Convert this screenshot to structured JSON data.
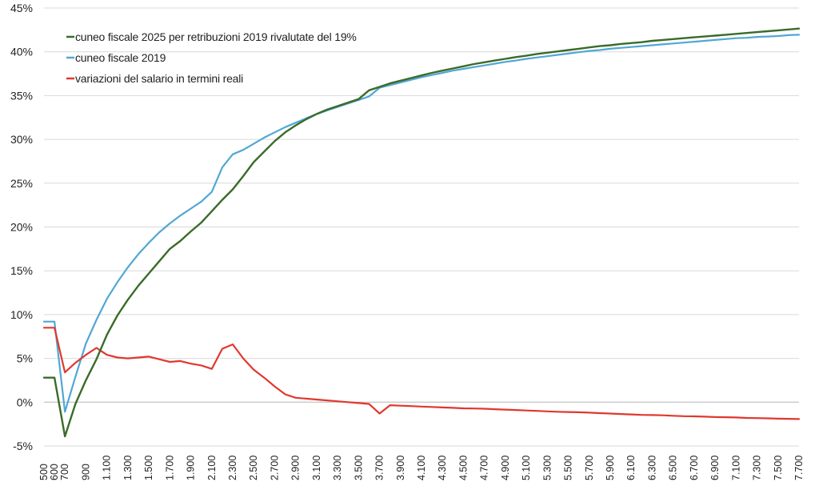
{
  "chart_data": {
    "type": "line",
    "title": "",
    "xlabel": "",
    "ylabel": "",
    "ylim": [
      -5,
      45
    ],
    "yticks": [
      -5,
      0,
      5,
      10,
      15,
      20,
      25,
      30,
      35,
      40,
      45
    ],
    "ytick_labels": [
      "-5%",
      "0%",
      "5%",
      "10%",
      "15%",
      "20%",
      "25%",
      "30%",
      "35%",
      "40%",
      "45%"
    ],
    "grid": "horizontal",
    "legend_position": "top-left",
    "x": [
      500,
      600,
      700,
      800,
      900,
      1000,
      1100,
      1200,
      1300,
      1400,
      1500,
      1600,
      1700,
      1800,
      1900,
      2000,
      2100,
      2200,
      2300,
      2400,
      2500,
      2600,
      2700,
      2800,
      2900,
      3000,
      3100,
      3200,
      3300,
      3400,
      3500,
      3600,
      3700,
      3800,
      3900,
      4000,
      4100,
      4200,
      4300,
      4400,
      4500,
      4600,
      4700,
      4800,
      4900,
      5000,
      5100,
      5200,
      5300,
      5400,
      5500,
      5600,
      5700,
      5800,
      5900,
      6000,
      6100,
      6200,
      6300,
      6400,
      6500,
      6600,
      6700,
      6800,
      6900,
      7000,
      7100,
      7200,
      7300,
      7400,
      7500,
      7600,
      7700
    ],
    "x_tick_labels": [
      "500",
      "600",
      "700",
      "900",
      "1.100",
      "1.300",
      "1.500",
      "1.700",
      "1.900",
      "2.100",
      "2.300",
      "2.500",
      "2.700",
      "2.900",
      "3.100",
      "3.300",
      "3.500",
      "3.700",
      "3.900",
      "4.100",
      "4.300",
      "4.500",
      "4.700",
      "4.900",
      "5.100",
      "5.300",
      "5.500",
      "5.700",
      "5.900",
      "6.100",
      "6.300",
      "6.500",
      "6.700",
      "6.900",
      "7.100",
      "7.300",
      "7.500",
      "7.700"
    ],
    "x_tick_values": [
      500,
      600,
      700,
      900,
      1100,
      1300,
      1500,
      1700,
      1900,
      2100,
      2300,
      2500,
      2700,
      2900,
      3100,
      3300,
      3500,
      3700,
      3900,
      4100,
      4300,
      4500,
      4700,
      4900,
      5100,
      5300,
      5500,
      5700,
      5900,
      6100,
      6300,
      6500,
      6700,
      6900,
      7100,
      7300,
      7500,
      7700
    ],
    "series": [
      {
        "name": "cuneo fiscale 2025 per retribuzioni 2019 rivalutate del 19%",
        "color": "#3a6b2a",
        "values": [
          2.8,
          2.8,
          -3.9,
          -0.2,
          2.5,
          4.9,
          7.7,
          9.9,
          11.7,
          13.3,
          14.7,
          16.1,
          17.5,
          18.4,
          19.5,
          20.5,
          21.8,
          23.1,
          24.3,
          25.8,
          27.4,
          28.6,
          29.8,
          30.8,
          31.6,
          32.3,
          32.9,
          33.4,
          33.8,
          34.2,
          34.6,
          35.6,
          36.0,
          36.4,
          36.7,
          37.0,
          37.3,
          37.6,
          37.85,
          38.1,
          38.35,
          38.6,
          38.8,
          39.0,
          39.2,
          39.4,
          39.55,
          39.75,
          39.9,
          40.05,
          40.2,
          40.35,
          40.5,
          40.65,
          40.75,
          40.9,
          41.0,
          41.1,
          41.25,
          41.35,
          41.45,
          41.55,
          41.65,
          41.75,
          41.85,
          41.95,
          42.05,
          42.15,
          42.25,
          42.35,
          42.45,
          42.55,
          42.65
        ],
        "bold": true
      },
      {
        "name": "cuneo fiscale 2019",
        "color": "#52a7d4",
        "values": [
          9.2,
          9.2,
          -1.1,
          2.9,
          6.7,
          9.4,
          11.8,
          13.7,
          15.4,
          16.9,
          18.2,
          19.4,
          20.4,
          21.3,
          22.1,
          22.9,
          24.0,
          26.8,
          28.3,
          28.8,
          29.5,
          30.2,
          30.8,
          31.4,
          31.9,
          32.4,
          32.9,
          33.3,
          33.7,
          34.1,
          34.5,
          34.9,
          35.9,
          36.2,
          36.5,
          36.8,
          37.1,
          37.35,
          37.6,
          37.85,
          38.05,
          38.25,
          38.45,
          38.65,
          38.85,
          39.0,
          39.2,
          39.35,
          39.5,
          39.65,
          39.8,
          39.95,
          40.1,
          40.2,
          40.35,
          40.45,
          40.55,
          40.65,
          40.75,
          40.85,
          40.95,
          41.05,
          41.15,
          41.25,
          41.35,
          41.45,
          41.55,
          41.6,
          41.7,
          41.75,
          41.8,
          41.9,
          41.95
        ]
      },
      {
        "name": "variazioni del salario in termini reali",
        "color": "#e0382e",
        "values": [
          8.5,
          8.5,
          3.4,
          4.5,
          5.4,
          6.2,
          5.4,
          5.1,
          5.0,
          5.1,
          5.2,
          4.9,
          4.6,
          4.7,
          4.4,
          4.2,
          3.8,
          6.1,
          6.6,
          5.0,
          3.7,
          2.8,
          1.8,
          0.9,
          0.5,
          0.4,
          0.3,
          0.2,
          0.1,
          0.0,
          -0.1,
          -0.2,
          -1.3,
          -0.35,
          -0.4,
          -0.45,
          -0.5,
          -0.55,
          -0.6,
          -0.65,
          -0.7,
          -0.72,
          -0.75,
          -0.8,
          -0.85,
          -0.9,
          -0.95,
          -1.0,
          -1.05,
          -1.1,
          -1.12,
          -1.15,
          -1.2,
          -1.25,
          -1.3,
          -1.35,
          -1.4,
          -1.45,
          -1.47,
          -1.5,
          -1.55,
          -1.6,
          -1.62,
          -1.65,
          -1.7,
          -1.72,
          -1.75,
          -1.8,
          -1.82,
          -1.85,
          -1.88,
          -1.9,
          -1.93
        ]
      }
    ]
  }
}
